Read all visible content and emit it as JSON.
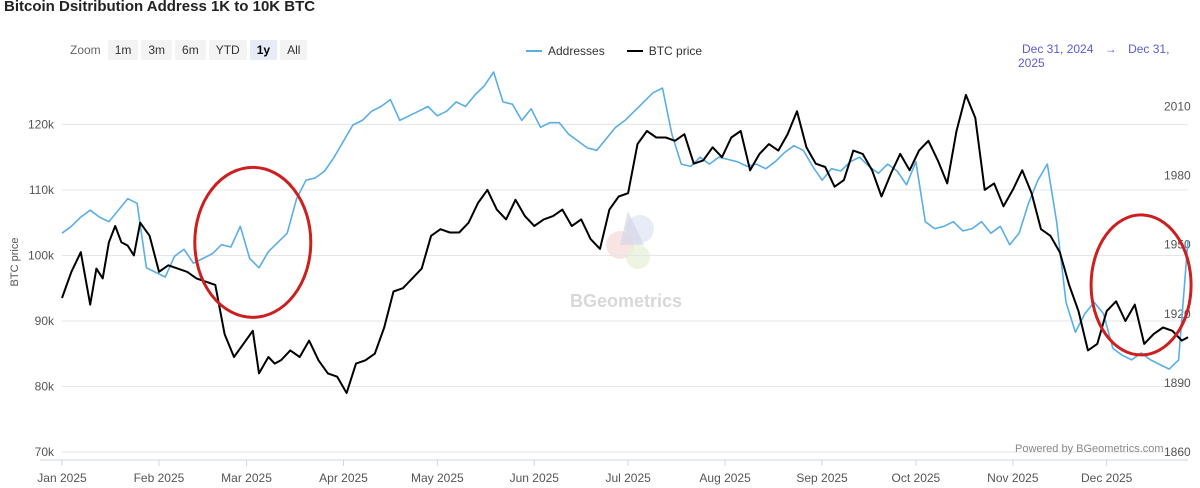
{
  "title": "Bitcoin Dsitribution Address 1K to 10K BTC",
  "zoom": {
    "label": "Zoom",
    "buttons": [
      "1m",
      "3m",
      "6m",
      "YTD",
      "1y",
      "All"
    ],
    "active": "1y"
  },
  "legend": {
    "addresses": "Addresses",
    "btc_price": "BTC price"
  },
  "range": {
    "from": "Dec 31, 2024",
    "arrow": "→",
    "to": "Dec 31, 2025"
  },
  "credit": "Powered by BGeometrics.com",
  "watermark": "BGeometrics",
  "colors": {
    "addresses": "#5aaee6",
    "btc_price": "#000000",
    "annotation": "#cc1f1f",
    "range": "#5b5bd6"
  },
  "chart_data": {
    "type": "line",
    "title": "Bitcoin Dsitribution Address 1K to 10K BTC",
    "ylabel": "BTC price",
    "ylim": [
      70000,
      128000
    ],
    "y2lim": [
      1860,
      2025
    ],
    "yticks": [
      "70k",
      "80k",
      "90k",
      "100k",
      "110k",
      "120k"
    ],
    "yticks_values": [
      70000,
      80000,
      90000,
      100000,
      110000,
      120000
    ],
    "y2ticks": [
      "1860",
      "1890",
      "1920",
      "1950",
      "1980",
      "2010"
    ],
    "y2ticks_values": [
      1860,
      1890,
      1920,
      1950,
      1980,
      2010
    ],
    "xticks": [
      "Jan 2025",
      "Feb 2025",
      "Mar 2025",
      "Apr 2025",
      "May 2025",
      "Jun 2025",
      "Jul 2025",
      "Aug 2025",
      "Sep 2025",
      "Oct 2025",
      "Nov 2025",
      "Dec 2025"
    ],
    "xticks_days": [
      0,
      31,
      59,
      90,
      120,
      151,
      181,
      212,
      243,
      273,
      304,
      334
    ],
    "x_range_days": [
      0,
      360
    ],
    "series": [
      {
        "name": "BTC price",
        "axis": "left",
        "x_days": [
          0,
          3,
          6,
          9,
          11,
          13,
          15,
          17,
          19,
          21,
          23,
          25,
          28,
          31,
          34,
          37,
          40,
          43,
          46,
          49,
          52,
          55,
          58,
          61,
          63,
          66,
          68,
          70,
          73,
          76,
          79,
          82,
          85,
          88,
          91,
          94,
          97,
          100,
          103,
          106,
          109,
          112,
          115,
          118,
          121,
          124,
          127,
          130,
          133,
          136,
          139,
          142,
          145,
          148,
          151,
          154,
          157,
          160,
          163,
          166,
          169,
          172,
          175,
          178,
          181,
          184,
          187,
          190,
          193,
          196,
          199,
          202,
          205,
          208,
          211,
          214,
          217,
          220,
          223,
          226,
          229,
          232,
          235,
          238,
          241,
          244,
          247,
          250,
          253,
          256,
          259,
          262,
          265,
          268,
          271,
          274,
          277,
          280,
          283,
          286,
          289,
          292,
          295,
          298,
          301,
          304,
          307,
          310,
          313,
          316,
          319,
          322,
          325,
          328,
          331,
          334,
          337,
          340,
          343,
          346,
          349,
          352,
          355,
          358,
          360
        ],
        "values": [
          93500,
          97500,
          100500,
          92500,
          98000,
          96500,
          102000,
          104500,
          102000,
          101500,
          100000,
          105000,
          103000,
          97500,
          98500,
          98000,
          97500,
          96500,
          96000,
          95500,
          88000,
          84500,
          86500,
          88500,
          82000,
          84500,
          83500,
          84000,
          85500,
          84500,
          87000,
          84000,
          82000,
          81500,
          79000,
          83500,
          84000,
          85000,
          89000,
          94500,
          95000,
          96500,
          98000,
          103000,
          104000,
          103500,
          103500,
          105000,
          108000,
          110000,
          107000,
          105500,
          108500,
          106000,
          104500,
          105500,
          106000,
          107000,
          104500,
          105500,
          102500,
          101000,
          107000,
          109000,
          109500,
          117000,
          119000,
          118000,
          118000,
          117500,
          118500,
          114000,
          114500,
          116500,
          115000,
          118000,
          119000,
          113000,
          115500,
          117000,
          116000,
          118500,
          122000,
          116500,
          114000,
          113500,
          110500,
          111500,
          116000,
          115500,
          113000,
          109000,
          112500,
          115500,
          113000,
          116000,
          117500,
          114500,
          111000,
          119000,
          124500,
          121000,
          110000,
          111000,
          107500,
          110000,
          113000,
          109500,
          104000,
          103000,
          100500,
          95500,
          91500,
          85500,
          86500,
          91500,
          93000,
          90000,
          92500,
          86500,
          88000,
          89000,
          88500,
          87000,
          87500
        ],
        "annotation": "BTC price chart line"
      },
      {
        "name": "Addresses",
        "axis": "right",
        "x_days": [
          0,
          3,
          6,
          9,
          12,
          15,
          18,
          21,
          24,
          27,
          30,
          33,
          36,
          39,
          42,
          45,
          48,
          51,
          54,
          57,
          60,
          63,
          66,
          69,
          72,
          75,
          78,
          81,
          84,
          87,
          90,
          93,
          96,
          99,
          102,
          105,
          108,
          111,
          114,
          117,
          120,
          123,
          126,
          129,
          132,
          135,
          138,
          141,
          144,
          147,
          150,
          153,
          156,
          159,
          162,
          165,
          168,
          171,
          174,
          177,
          180,
          183,
          186,
          189,
          192,
          195,
          198,
          201,
          204,
          207,
          210,
          213,
          216,
          219,
          222,
          225,
          228,
          231,
          234,
          237,
          240,
          243,
          246,
          249,
          252,
          255,
          258,
          261,
          264,
          267,
          270,
          273,
          276,
          279,
          282,
          285,
          288,
          291,
          294,
          297,
          300,
          303,
          306,
          309,
          312,
          315,
          318,
          321,
          324,
          327,
          330,
          333,
          336,
          339,
          342,
          345,
          348,
          351,
          354,
          357,
          360
        ],
        "values": [
          1955,
          1958,
          1962,
          1965,
          1962,
          1960,
          1965,
          1970,
          1968,
          1940,
          1938,
          1936,
          1945,
          1948,
          1942,
          1944,
          1946,
          1950,
          1949,
          1958,
          1944,
          1940,
          1947,
          1951,
          1955,
          1970,
          1978,
          1979,
          1982,
          1988,
          1995,
          2002,
          2004,
          2008,
          2010,
          2013,
          2004,
          2006,
          2008,
          2010,
          2006,
          2008,
          2012,
          2010,
          2015,
          2019,
          2025,
          2012,
          2011,
          2004,
          2009,
          2001,
          2003,
          2003,
          1998,
          1995,
          1992,
          1991,
          1996,
          2001,
          2004,
          2008,
          2012,
          2016,
          2018,
          1998,
          1985,
          1984,
          1988,
          1985,
          1988,
          1987,
          1986,
          1984,
          1985,
          1983,
          1986,
          1990,
          1993,
          1991,
          1984,
          1978,
          1983,
          1982,
          1986,
          1988,
          1984,
          1981,
          1985,
          1982,
          1976,
          1986,
          1960,
          1957,
          1958,
          1960,
          1956,
          1957,
          1960,
          1955,
          1958,
          1950,
          1955,
          1968,
          1978,
          1985,
          1960,
          1925,
          1912,
          1920,
          1925,
          1920,
          1905,
          1902,
          1900,
          1903,
          1900,
          1898,
          1896,
          1900,
          1952
        ],
        "annotation": "Addresses chart line"
      }
    ],
    "annotations": [
      {
        "type": "ellipse",
        "label": "highlight-mar-2025"
      },
      {
        "type": "ellipse",
        "label": "highlight-dec-2025"
      }
    ]
  }
}
